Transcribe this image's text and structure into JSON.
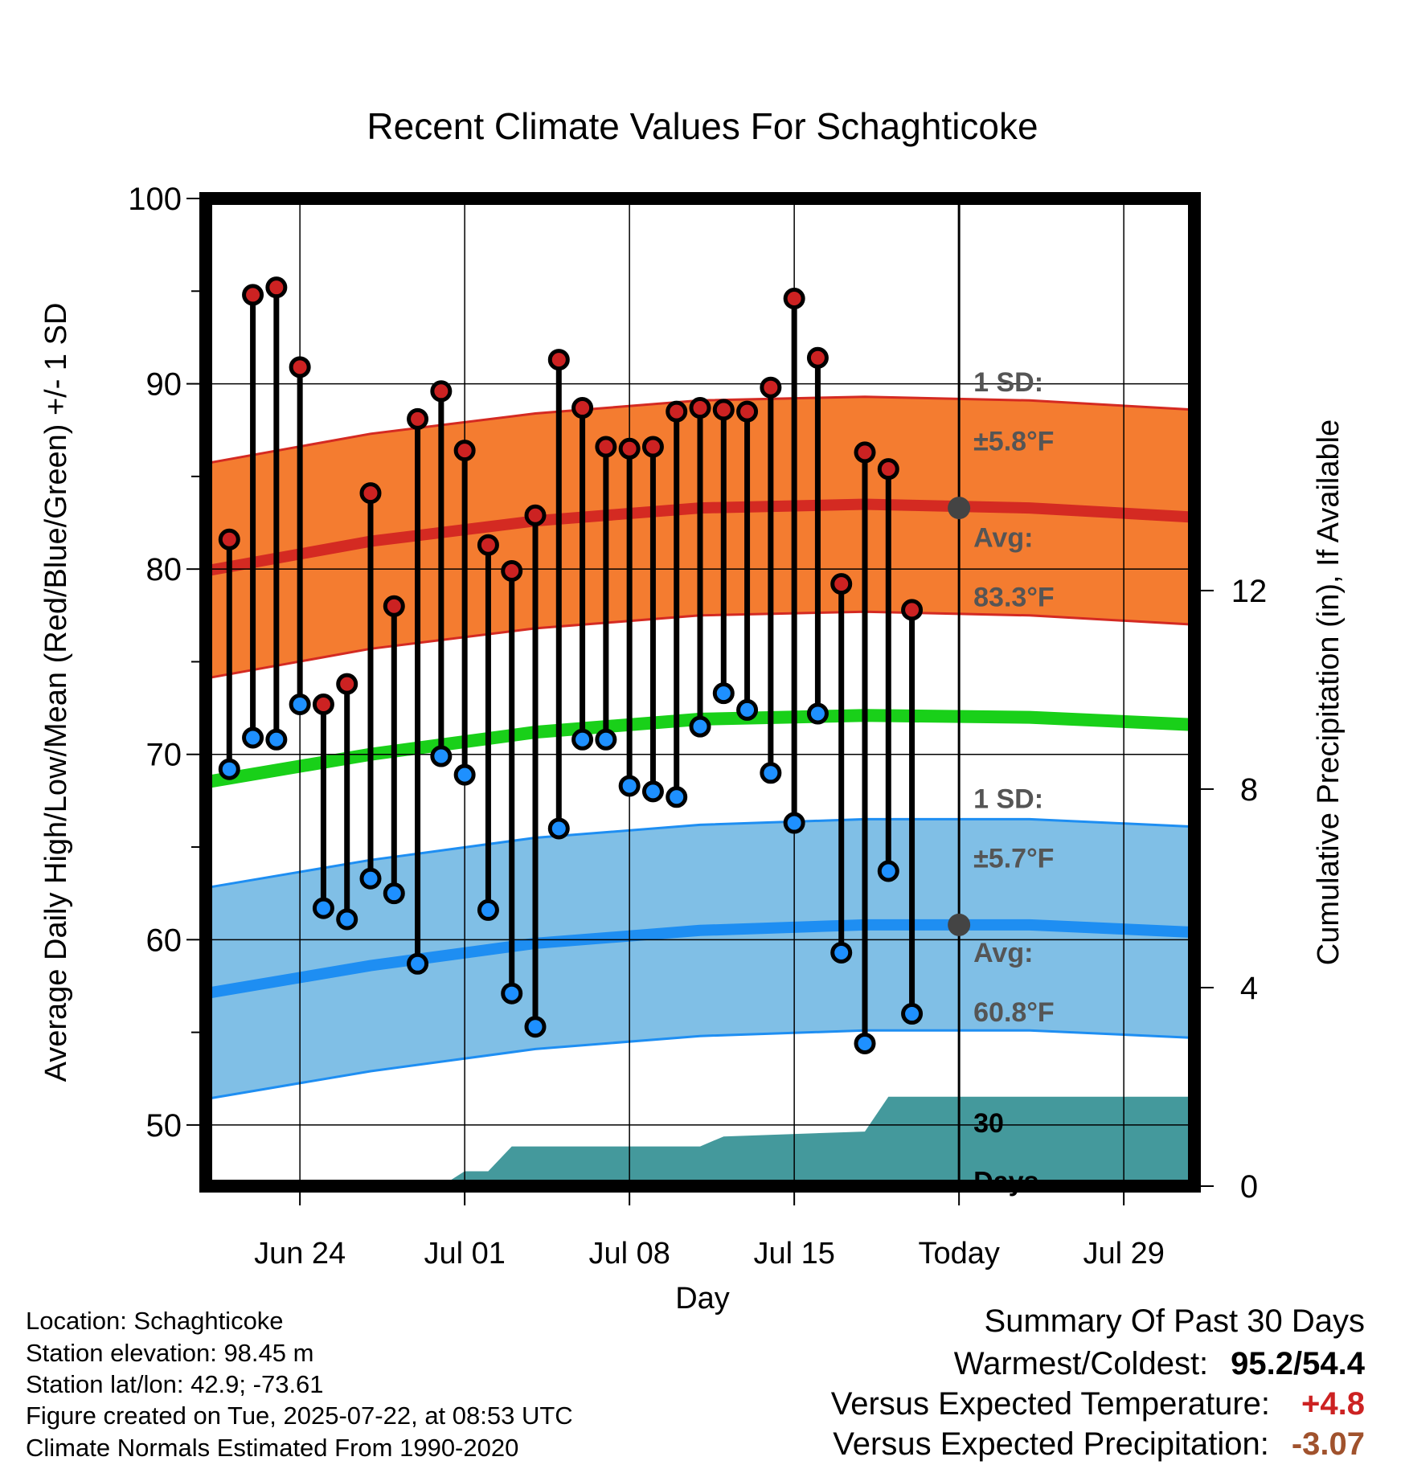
{
  "chart_data": {
    "type": "line",
    "title": "Recent Climate Values For Schaghticoke",
    "xlabel": "Day",
    "ylabel": "Average Daily High/Low/Mean (Red/Blue/Green) +/- 1 SD",
    "y2label": "Cumulative Precipitation (in), If Available",
    "ylim": [
      46.7,
      100
    ],
    "y2lim": [
      0,
      19.9
    ],
    "yticks": [
      "50",
      "60",
      "70",
      "80",
      "90",
      "100"
    ],
    "y2ticks": [
      "0",
      "4",
      "8",
      "12"
    ],
    "xlim": [
      "2025-06-20",
      "2025-08-01"
    ],
    "xticks": [
      {
        "date": "2025-06-24",
        "label": "Jun 24"
      },
      {
        "date": "2025-07-01",
        "label": "Jul 01"
      },
      {
        "date": "2025-07-08",
        "label": "Jul 08"
      },
      {
        "date": "2025-07-15",
        "label": "Jul 15"
      },
      {
        "date": "2025-07-22",
        "label": "Today"
      },
      {
        "date": "2025-07-29",
        "label": "Jul 29"
      }
    ],
    "grid": true,
    "today_marker": {
      "date": "2025-07-22",
      "label_line1": "30",
      "label_line2": "Days"
    },
    "normals": {
      "dates": [
        "2025-06-20",
        "2025-06-27",
        "2025-07-04",
        "2025-07-11",
        "2025-07-18",
        "2025-07-25",
        "2025-08-01"
      ],
      "high_mean": [
        79.9,
        81.5,
        82.6,
        83.3,
        83.5,
        83.3,
        82.8
      ],
      "high_sd": 5.8,
      "low_mean": [
        57.1,
        58.6,
        59.8,
        60.5,
        60.8,
        60.8,
        60.4
      ],
      "low_sd": 5.7,
      "mean": [
        68.5,
        70.0,
        71.2,
        71.9,
        72.1,
        72.0,
        71.6
      ]
    },
    "daily": {
      "dates": [
        "2025-06-21",
        "2025-06-22",
        "2025-06-23",
        "2025-06-24",
        "2025-06-25",
        "2025-06-26",
        "2025-06-27",
        "2025-06-28",
        "2025-06-29",
        "2025-06-30",
        "2025-07-01",
        "2025-07-02",
        "2025-07-03",
        "2025-07-04",
        "2025-07-05",
        "2025-07-06",
        "2025-07-07",
        "2025-07-08",
        "2025-07-09",
        "2025-07-10",
        "2025-07-11",
        "2025-07-12",
        "2025-07-13",
        "2025-07-14",
        "2025-07-15",
        "2025-07-16",
        "2025-07-17",
        "2025-07-18",
        "2025-07-19",
        "2025-07-20",
        "2025-07-21"
      ],
      "highs": [
        81.6,
        94.8,
        95.2,
        90.9,
        72.7,
        73.8,
        84.1,
        78.0,
        88.1,
        89.6,
        86.4,
        81.3,
        79.9,
        82.9,
        91.3,
        88.7,
        86.6,
        86.5,
        86.6,
        88.5,
        88.7,
        88.6,
        88.5,
        89.8,
        94.6,
        91.4,
        79.2,
        86.3,
        85.4,
        77.8,
        null
      ],
      "lows": [
        69.2,
        70.9,
        70.8,
        72.7,
        61.7,
        61.1,
        63.3,
        62.5,
        58.7,
        69.9,
        68.9,
        61.6,
        57.1,
        55.3,
        66.0,
        70.8,
        70.8,
        68.3,
        68.0,
        67.7,
        71.5,
        73.3,
        72.4,
        69.0,
        66.3,
        72.2,
        59.3,
        54.4,
        63.7,
        56.0,
        null
      ]
    },
    "precip": {
      "dates": [
        "2025-06-20",
        "2025-06-30",
        "2025-07-01",
        "2025-07-02",
        "2025-07-03",
        "2025-07-11",
        "2025-07-12",
        "2025-07-18",
        "2025-07-19",
        "2025-08-01"
      ],
      "values": [
        0,
        0,
        0.3,
        0.3,
        0.8,
        0.8,
        1.0,
        1.1,
        1.8,
        1.8
      ]
    },
    "annotations": {
      "high_sd_line1": "1 SD:",
      "high_sd_line2": "±5.8°F",
      "high_avg_line1": "Avg:",
      "high_avg_line2": "83.3°F",
      "low_sd_line1": "1 SD:",
      "low_sd_line2": "±5.7°F",
      "low_avg_line1": "Avg:",
      "low_avg_line2": "60.8°F"
    },
    "colors": {
      "high_band": "#f47c30",
      "high_line": "#d42a22",
      "low_band": "#80bfe6",
      "low_line": "#1e8ef2",
      "mean_line": "#19d019",
      "precip": "#44999c",
      "high_dot": "#cc2222",
      "low_dot": "#1e90ff",
      "marker": "#444444",
      "annotation_text": "#555555"
    }
  },
  "footer": {
    "location": "Location: Schaghticoke",
    "elevation": "Station elevation: 98.45 m",
    "latlon": "Station lat/lon: 42.9; -73.61",
    "created": "Figure created on Tue, 2025-07-22, at 08:53 UTC",
    "normals": "Climate Normals Estimated From 1990-2020"
  },
  "summary": {
    "title": "Summary Of Past 30 Days",
    "rows": [
      {
        "label": "Warmest/Coldest:",
        "value": "95.2/54.4",
        "color": "#000000"
      },
      {
        "label": "Versus Expected Temperature:",
        "value": "+4.8",
        "color": "#cc2222"
      },
      {
        "label": "Versus Expected Precipitation:",
        "value": "-3.07",
        "color": "#a0522d"
      }
    ]
  }
}
